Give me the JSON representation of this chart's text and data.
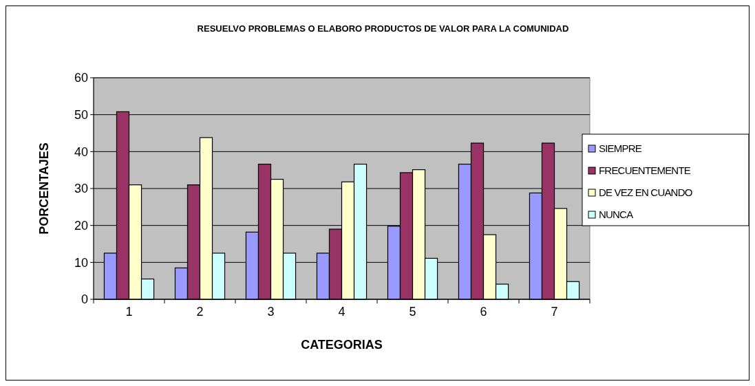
{
  "chart_data": {
    "type": "bar",
    "title": "RESUELVO PROBLEMAS O ELABORO PRODUCTOS DE VALOR PARA LA COMUNIDAD",
    "xlabel": "CATEGORIAS",
    "ylabel": "PORCENTAJES",
    "categories": [
      "1",
      "2",
      "3",
      "4",
      "5",
      "6",
      "7"
    ],
    "series": [
      {
        "name": "SIEMPRE",
        "color": "#9999ff",
        "values": [
          12.5,
          8.5,
          18.2,
          12.5,
          19.8,
          36.6,
          28.8
        ]
      },
      {
        "name": "FRECUENTEMENTE",
        "color": "#993366",
        "values": [
          50.8,
          31,
          36.6,
          19,
          34.3,
          42.3,
          42.3
        ]
      },
      {
        "name": "DE VEZ EN CUANDO",
        "color": "#ffffcc",
        "values": [
          31,
          43.8,
          32.5,
          31.8,
          35.1,
          17.5,
          24.6
        ]
      },
      {
        "name": "NUNCA",
        "color": "#ccffff",
        "values": [
          5.5,
          12.5,
          12.5,
          36.6,
          11.1,
          4.1,
          4.8
        ]
      }
    ],
    "ylim": [
      0,
      60
    ],
    "yticks": [
      0,
      10,
      20,
      30,
      40,
      50,
      60
    ],
    "grid": "y",
    "legend": "right"
  }
}
